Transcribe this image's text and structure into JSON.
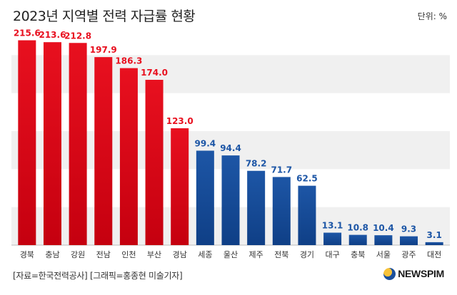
{
  "header": {
    "title": "2023년 지역별 전력 자급률 현황",
    "unit": "단위: %"
  },
  "footer": {
    "source": "[자료=한국전력공사] [그래픽=홍종현 미술기자]",
    "logo_text": "NEWSPIM"
  },
  "colors": {
    "high": "#e8101f",
    "low": "#1d56a6",
    "high_label": "#e8101f",
    "low_label": "#1d56a6",
    "band": "#f0f0f0"
  },
  "chart_data": {
    "type": "bar",
    "title": "2023년 지역별 전력 자급률 현황",
    "xlabel": "",
    "ylabel": "",
    "unit": "%",
    "ylim": [
      0,
      225
    ],
    "grid": "horizontal bands",
    "categories": [
      "경북",
      "충남",
      "강원",
      "전남",
      "인천",
      "부산",
      "경남",
      "세종",
      "울산",
      "제주",
      "전북",
      "경기",
      "대구",
      "충북",
      "서울",
      "광주",
      "대전"
    ],
    "values": [
      215.6,
      213.6,
      212.8,
      197.9,
      186.3,
      174.0,
      123.0,
      99.4,
      94.4,
      78.2,
      71.7,
      62.5,
      13.1,
      10.8,
      10.4,
      9.3,
      3.1
    ],
    "labels": [
      "215.6",
      "213.6",
      "212.8",
      "197.9",
      "186.3",
      "174.0",
      "123.0",
      "99.4",
      "94.4",
      "78.2",
      "71.7",
      "62.5",
      "13.1",
      "10.8",
      "10.4",
      "9.3",
      "3.1"
    ],
    "color_groups": [
      "high",
      "high",
      "high",
      "high",
      "high",
      "high",
      "high",
      "low",
      "low",
      "low",
      "low",
      "low",
      "low",
      "low",
      "low",
      "low",
      "low"
    ]
  }
}
